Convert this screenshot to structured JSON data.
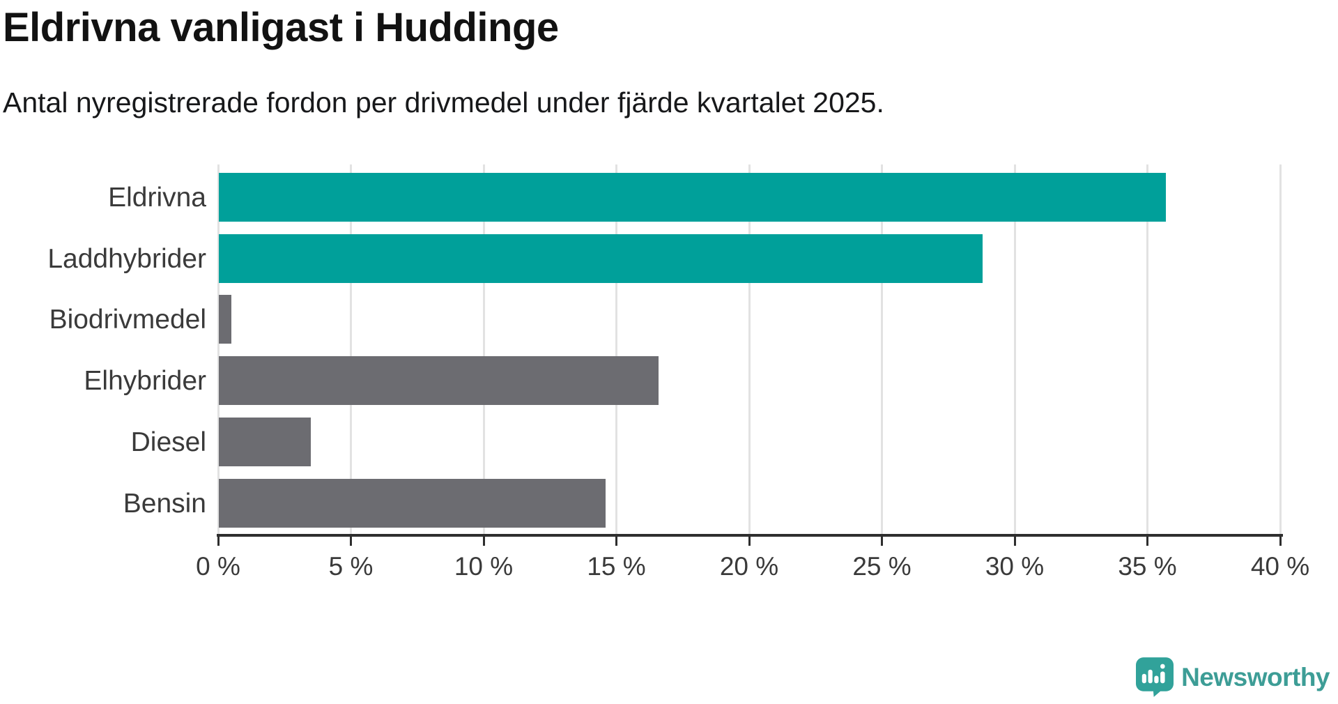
{
  "header": {
    "title": "Eldrivna vanligast i Huddinge",
    "subtitle": "Antal nyregistrerade fordon per drivmedel under fjärde kvartalet 2025."
  },
  "chart_data": {
    "type": "bar",
    "orientation": "horizontal",
    "title": "Eldrivna vanligast i Huddinge",
    "subtitle": "Antal nyregistrerade fordon per drivmedel under fjärde kvartalet 2025.",
    "categories": [
      "Eldrivna",
      "Laddhybrider",
      "Biodrivmedel",
      "Elhybrider",
      "Diesel",
      "Bensin"
    ],
    "values": [
      35.7,
      28.8,
      0.5,
      16.6,
      3.5,
      14.6
    ],
    "unit": "%",
    "bar_colors": [
      "#00a09a",
      "#00a09a",
      "#6c6c71",
      "#6c6c71",
      "#6c6c71",
      "#6c6c71"
    ],
    "xlim": [
      0,
      40
    ],
    "xticks": [
      0,
      5,
      10,
      15,
      20,
      25,
      30,
      35,
      40
    ],
    "xtick_suffix": " %",
    "grid": true,
    "legend": false
  },
  "colors": {
    "accent_teal": "#00a09a",
    "neutral_gray": "#6c6c71",
    "gridline": "#e2e2e2",
    "axis": "#2e2e2e",
    "label_text": "#3a3a3a",
    "title_text": "#121212",
    "logo_teal": "#3d9d96"
  },
  "footer": {
    "brand": "Newsworthy",
    "logo_icon": "bar-chart-speech-bubble-icon"
  }
}
